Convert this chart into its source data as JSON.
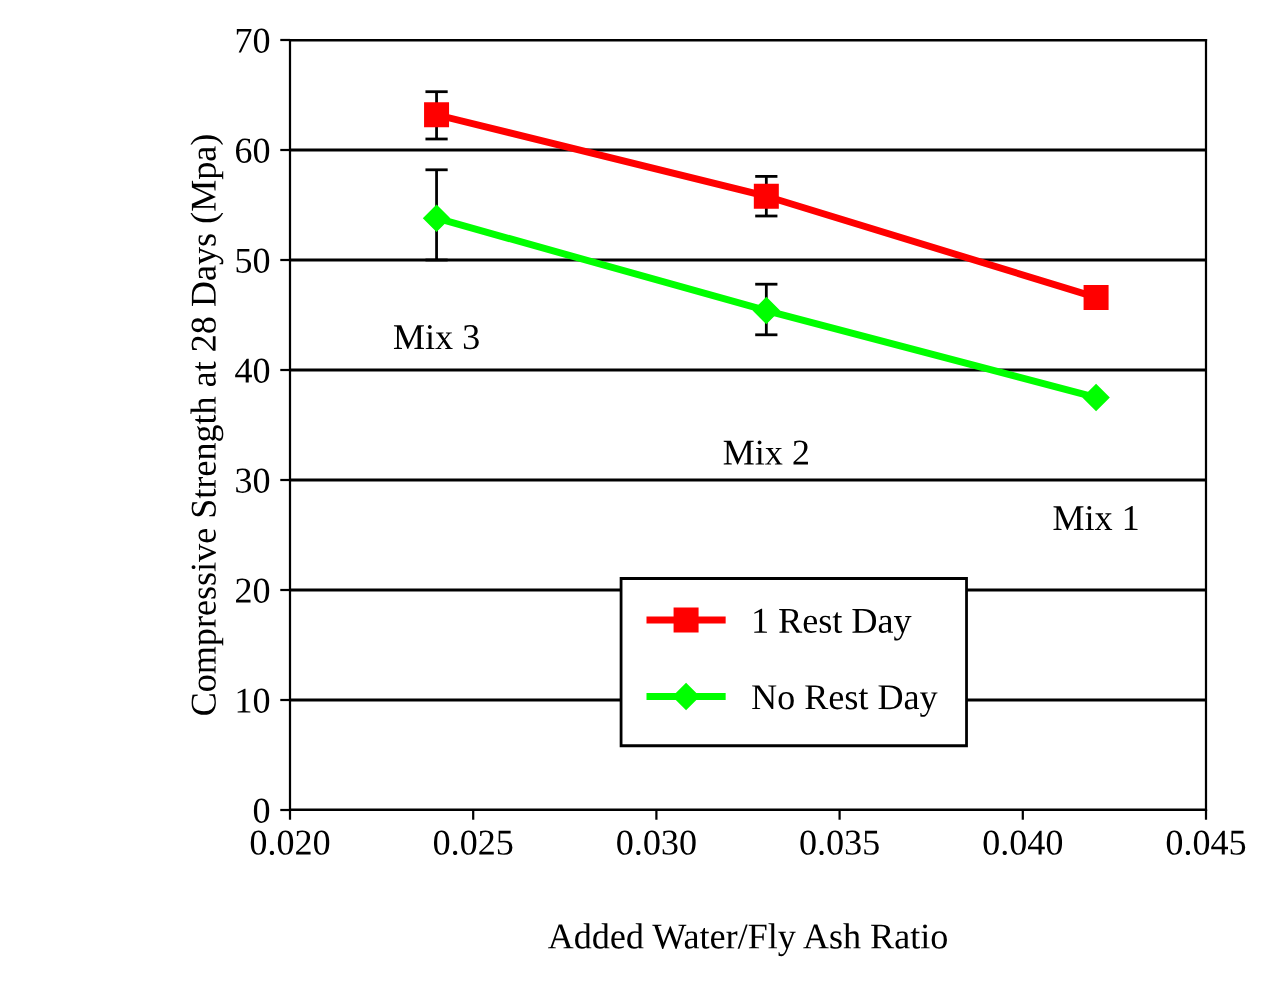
{
  "chart_data": {
    "type": "line",
    "xlabel": "Added Water/Fly Ash Ratio",
    "ylabel": "Compressive Strength at 28 Days (Mpa)",
    "x": [
      0.024,
      0.033,
      0.042
    ],
    "series": [
      {
        "name": "1 Rest Day",
        "color": "#ff0000",
        "marker": "square",
        "values": [
          63.2,
          55.8,
          46.6
        ],
        "errors": [
          [
            61.0,
            65.3
          ],
          [
            54.0,
            57.6
          ],
          null
        ]
      },
      {
        "name": "No Rest Day",
        "color": "#00ff00",
        "marker": "diamond",
        "values": [
          53.8,
          45.4,
          37.5
        ],
        "errors": [
          [
            50.0,
            58.2
          ],
          [
            43.2,
            47.8
          ],
          null
        ]
      }
    ],
    "annotations": [
      "Mix 3",
      "Mix 2",
      "Mix 1"
    ],
    "xlim": [
      0.02,
      0.045
    ],
    "xticks": [
      {
        "value": 0.02,
        "label": "0.020"
      },
      {
        "value": 0.025,
        "label": "0.025"
      },
      {
        "value": 0.03,
        "label": "0.030"
      },
      {
        "value": 0.035,
        "label": "0.035"
      },
      {
        "value": 0.04,
        "label": "0.040"
      },
      {
        "value": 0.045,
        "label": "0.045"
      }
    ],
    "ylim": [
      0,
      70
    ],
    "yticks": [
      0,
      10,
      20,
      30,
      40,
      50,
      60,
      70
    ],
    "grid": "y",
    "legend": "bottom",
    "line_style": "solid"
  }
}
